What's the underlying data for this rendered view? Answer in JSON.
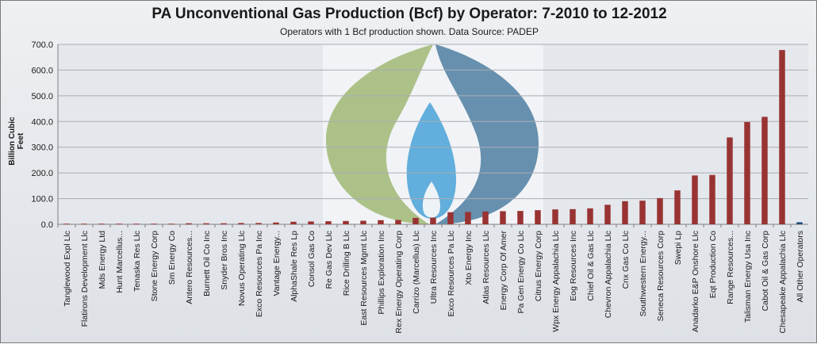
{
  "chart_data": {
    "type": "bar",
    "title": "PA Unconventional Gas Production (Bcf) by Operator:  7-2010 to 12-2012",
    "subtitle": "Operators with 1 Bcf production shown.  Data Source:  PADEP",
    "ylabel": "Billion Cubic Feet",
    "xlabel": "",
    "ylim": [
      0,
      700
    ],
    "yticks": [
      "0.0",
      "100.0",
      "200.0",
      "300.0",
      "400.0",
      "500.0",
      "600.0",
      "700.0"
    ],
    "grid": true,
    "legend": "none",
    "bar_color": "#993333",
    "highlight_color": "#1f497d",
    "categories": [
      "Tanglewood Expl Llc",
      "Flatirons Development Llc",
      "Mds Energy Ltd",
      "Hunt Marcellus...",
      "Tenaska Res Llc",
      "Stone Energy Corp",
      "Sm Energy Co",
      "Antero Resources...",
      "Burnett Oil Co Inc",
      "Snyder Bros Inc",
      "Novus Operating Llc",
      "Exco Resources Pa Inc",
      "Vantage Energy...",
      "AlphaShale Res Lp",
      "Consol Gas Co",
      "Re Gas Dev Llc",
      "Rice Drilling B Llc",
      "East Resources Mgmt Llc",
      "Phillips Exploration Inc",
      "Rex Energy Operating Corp",
      "Carrizo (Marcellus) Llc",
      "Ultra Resources Inc",
      "Exco Resources Pa Llc",
      "Xto Energy Inc",
      "Atlas Resources Llc",
      "Energy Corp Of Amer",
      "Pa Gen Energy Co Llc",
      "Citrus Energy Corp",
      "Wpx Energy Appalachia Llc",
      "Eog Resources Inc",
      "Chief Oil & Gas Llc",
      "Chevron Appalachia Llc",
      "Cnx Gas Co Llc",
      "Southwestern Energy...",
      "Seneca Resources Corp",
      "Swepi Lp",
      "Anadarko E&P Onshore Llc",
      "Eqt Production Co",
      "Range Resources...",
      "Talisman Energy Usa Inc",
      "Cabot Oil & Gas Corp",
      "Chesapeake Appalachia Llc",
      "All Other Operators"
    ],
    "values": [
      1,
      1,
      1,
      1,
      1,
      1,
      2,
      4,
      4,
      4,
      5,
      5,
      7,
      10,
      11,
      12,
      13,
      14,
      16,
      17,
      25,
      26,
      47,
      48,
      50,
      51,
      52,
      55,
      58,
      59,
      62,
      76,
      90,
      92,
      102,
      132,
      190,
      192,
      338,
      398,
      418,
      678,
      8
    ]
  }
}
